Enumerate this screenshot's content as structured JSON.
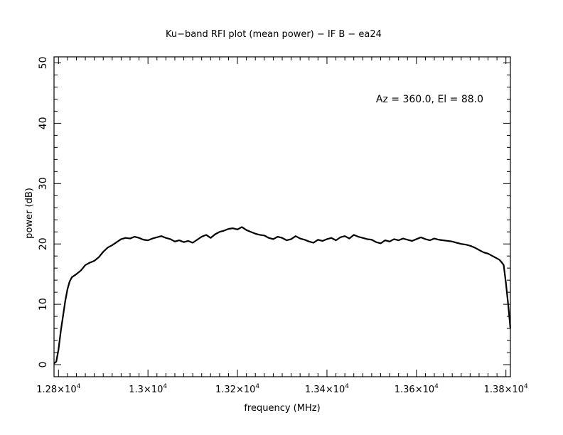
{
  "chart_data": {
    "type": "line",
    "title": "Ku−band RFI plot (mean power) − IF B − ea24",
    "xlabel": "frequency (MHz)",
    "ylabel": "power (dB)",
    "annotation": "Az = 360.0, El = 88.0",
    "xlim": [
      12790,
      13810
    ],
    "ylim": [
      -2,
      51
    ],
    "x_ticks": [
      {
        "value": 12800,
        "mantissa": "1.28",
        "exp": "4"
      },
      {
        "value": 13000,
        "mantissa": "1.3",
        "exp": "4"
      },
      {
        "value": 13200,
        "mantissa": "1.32",
        "exp": "4"
      },
      {
        "value": 13400,
        "mantissa": "1.34",
        "exp": "4"
      },
      {
        "value": 13600,
        "mantissa": "1.36",
        "exp": "4"
      },
      {
        "value": 13800,
        "mantissa": "1.38",
        "exp": "4"
      }
    ],
    "y_ticks": [
      0,
      10,
      20,
      30,
      40,
      50
    ],
    "grid": false,
    "series": [
      {
        "color": "#000000",
        "x": [
          12790,
          12795,
          12800,
          12805,
          12810,
          12815,
          12820,
          12825,
          12830,
          12840,
          12850,
          12860,
          12870,
          12880,
          12890,
          12900,
          12910,
          12920,
          12930,
          12940,
          12950,
          12960,
          12970,
          12980,
          12990,
          13000,
          13010,
          13020,
          13030,
          13040,
          13050,
          13060,
          13070,
          13080,
          13090,
          13100,
          13110,
          13120,
          13130,
          13140,
          13150,
          13160,
          13170,
          13180,
          13190,
          13200,
          13210,
          13220,
          13230,
          13240,
          13250,
          13260,
          13270,
          13280,
          13290,
          13300,
          13310,
          13320,
          13330,
          13340,
          13350,
          13360,
          13370,
          13380,
          13390,
          13400,
          13410,
          13420,
          13430,
          13440,
          13450,
          13460,
          13470,
          13480,
          13490,
          13500,
          13510,
          13520,
          13530,
          13540,
          13550,
          13560,
          13570,
          13580,
          13590,
          13600,
          13610,
          13620,
          13630,
          13640,
          13650,
          13660,
          13670,
          13680,
          13690,
          13700,
          13710,
          13720,
          13730,
          13740,
          13750,
          13760,
          13770,
          13780,
          13785,
          13790,
          13795,
          13800,
          13805,
          13810
        ],
        "y": [
          0.2,
          0.5,
          2.5,
          5.5,
          8.0,
          10.5,
          12.5,
          13.8,
          14.5,
          15.0,
          15.6,
          16.5,
          16.9,
          17.2,
          17.8,
          18.7,
          19.4,
          19.8,
          20.3,
          20.8,
          21.0,
          20.9,
          21.2,
          21.0,
          20.7,
          20.6,
          20.9,
          21.1,
          21.3,
          21.0,
          20.8,
          20.4,
          20.6,
          20.3,
          20.5,
          20.2,
          20.7,
          21.2,
          21.5,
          21.0,
          21.6,
          22.0,
          22.2,
          22.5,
          22.6,
          22.4,
          22.8,
          22.3,
          22.0,
          21.7,
          21.5,
          21.4,
          21.0,
          20.8,
          21.2,
          21.0,
          20.6,
          20.8,
          21.3,
          20.9,
          20.7,
          20.4,
          20.2,
          20.7,
          20.5,
          20.8,
          21.0,
          20.6,
          21.1,
          21.3,
          20.9,
          21.5,
          21.2,
          21.0,
          20.8,
          20.7,
          20.3,
          20.1,
          20.6,
          20.4,
          20.8,
          20.6,
          20.9,
          20.7,
          20.5,
          20.8,
          21.1,
          20.8,
          20.6,
          20.9,
          20.7,
          20.6,
          20.5,
          20.4,
          20.2,
          20.0,
          19.9,
          19.7,
          19.4,
          19.0,
          18.6,
          18.4,
          18.0,
          17.6,
          17.4,
          17.0,
          16.5,
          13.5,
          10.0,
          6.0
        ]
      }
    ]
  }
}
